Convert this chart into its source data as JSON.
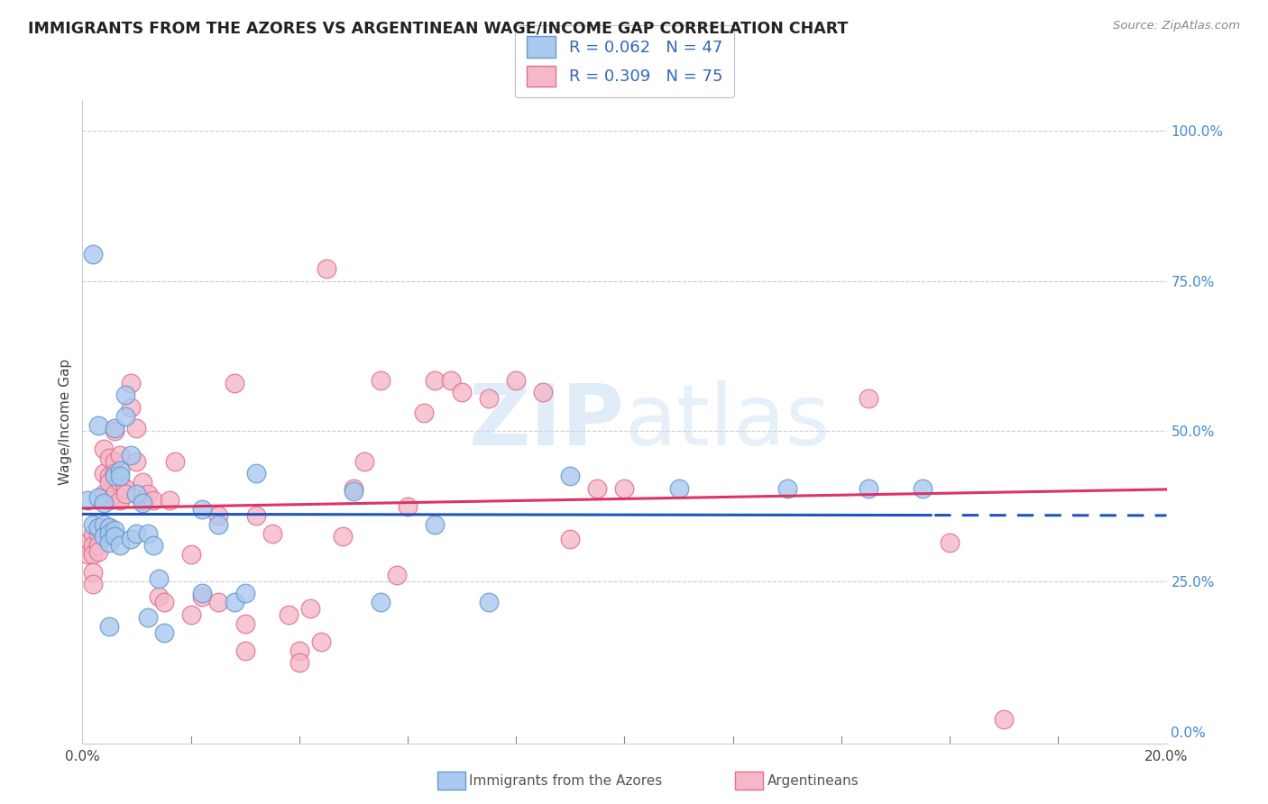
{
  "title": "IMMIGRANTS FROM THE AZORES VS ARGENTINEAN WAGE/INCOME GAP CORRELATION CHART",
  "source": "Source: ZipAtlas.com",
  "ylabel": "Wage/Income Gap",
  "xlim": [
    0.0,
    0.2
  ],
  "ylim": [
    -0.02,
    1.05
  ],
  "series1_name": "Immigrants from the Azores",
  "series1_R": 0.062,
  "series1_N": 47,
  "series1_color": "#aac9ef",
  "series1_edge": "#6699cc",
  "series2_name": "Argentineans",
  "series2_R": 0.309,
  "series2_N": 75,
  "series2_color": "#f5b8c8",
  "series2_edge": "#e07090",
  "trend1_color": "#2255bb",
  "trend2_color": "#dd3366",
  "watermark": "ZIPatlas",
  "background_color": "#ffffff",
  "series1_x": [
    0.001,
    0.002,
    0.002,
    0.003,
    0.003,
    0.003,
    0.004,
    0.004,
    0.004,
    0.005,
    0.005,
    0.005,
    0.005,
    0.006,
    0.006,
    0.006,
    0.006,
    0.007,
    0.007,
    0.007,
    0.008,
    0.008,
    0.009,
    0.009,
    0.01,
    0.01,
    0.011,
    0.012,
    0.012,
    0.013,
    0.014,
    0.015,
    0.022,
    0.022,
    0.025,
    0.028,
    0.03,
    0.032,
    0.05,
    0.055,
    0.065,
    0.075,
    0.09,
    0.11,
    0.13,
    0.145,
    0.155
  ],
  "series1_y": [
    0.385,
    0.345,
    0.795,
    0.39,
    0.34,
    0.51,
    0.38,
    0.345,
    0.325,
    0.34,
    0.33,
    0.315,
    0.175,
    0.505,
    0.425,
    0.335,
    0.325,
    0.435,
    0.425,
    0.31,
    0.56,
    0.525,
    0.46,
    0.32,
    0.395,
    0.33,
    0.38,
    0.33,
    0.19,
    0.31,
    0.255,
    0.165,
    0.37,
    0.23,
    0.345,
    0.215,
    0.23,
    0.43,
    0.4,
    0.215,
    0.345,
    0.215,
    0.425,
    0.405,
    0.405,
    0.405,
    0.405
  ],
  "series2_x": [
    0.001,
    0.001,
    0.002,
    0.002,
    0.002,
    0.002,
    0.002,
    0.003,
    0.003,
    0.003,
    0.003,
    0.004,
    0.004,
    0.004,
    0.005,
    0.005,
    0.005,
    0.005,
    0.005,
    0.006,
    0.006,
    0.006,
    0.006,
    0.007,
    0.007,
    0.007,
    0.008,
    0.008,
    0.009,
    0.009,
    0.01,
    0.01,
    0.011,
    0.011,
    0.012,
    0.013,
    0.014,
    0.015,
    0.016,
    0.017,
    0.02,
    0.02,
    0.022,
    0.025,
    0.025,
    0.028,
    0.03,
    0.03,
    0.032,
    0.035,
    0.038,
    0.04,
    0.04,
    0.042,
    0.044,
    0.045,
    0.048,
    0.05,
    0.052,
    0.055,
    0.058,
    0.06,
    0.063,
    0.065,
    0.068,
    0.07,
    0.075,
    0.08,
    0.085,
    0.09,
    0.095,
    0.1,
    0.145,
    0.16,
    0.17
  ],
  "series2_y": [
    0.315,
    0.295,
    0.33,
    0.31,
    0.295,
    0.265,
    0.245,
    0.34,
    0.33,
    0.31,
    0.3,
    0.47,
    0.43,
    0.395,
    0.455,
    0.425,
    0.415,
    0.385,
    0.34,
    0.5,
    0.45,
    0.43,
    0.395,
    0.46,
    0.415,
    0.385,
    0.405,
    0.395,
    0.58,
    0.54,
    0.505,
    0.45,
    0.415,
    0.385,
    0.395,
    0.385,
    0.225,
    0.215,
    0.385,
    0.45,
    0.295,
    0.195,
    0.225,
    0.215,
    0.36,
    0.58,
    0.18,
    0.135,
    0.36,
    0.33,
    0.195,
    0.135,
    0.115,
    0.205,
    0.15,
    0.77,
    0.325,
    0.405,
    0.45,
    0.585,
    0.26,
    0.375,
    0.53,
    0.585,
    0.585,
    0.565,
    0.555,
    0.585,
    0.565,
    0.32,
    0.405,
    0.405,
    0.555,
    0.315,
    0.02
  ]
}
